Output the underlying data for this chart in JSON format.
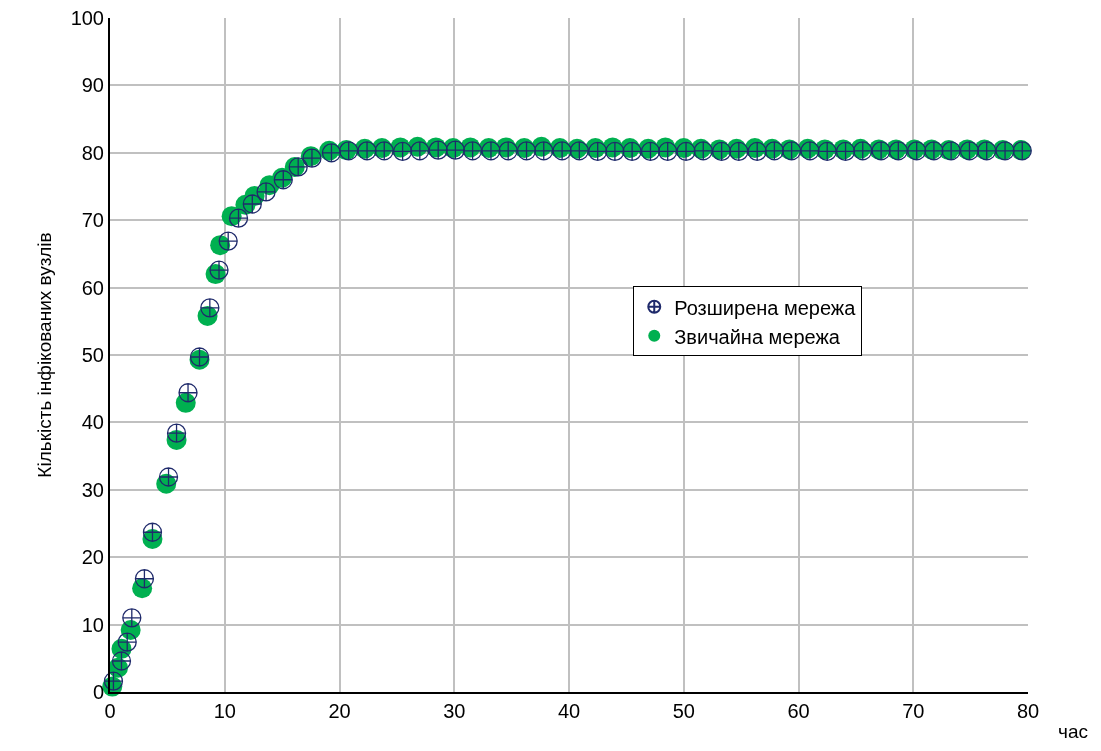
{
  "chart_data": {
    "type": "scatter",
    "xlabel": "час",
    "ylabel": "Кількість інфікованих вузлів",
    "xlim": [
      0,
      80
    ],
    "ylim": [
      0,
      100
    ],
    "xticks": [
      0,
      10,
      20,
      30,
      40,
      50,
      60,
      70,
      80
    ],
    "yticks": [
      0,
      10,
      20,
      30,
      40,
      50,
      60,
      70,
      80,
      90,
      100
    ],
    "grid": true,
    "legend": "right",
    "series": [
      {
        "name": "Звичайна мережа",
        "color": "#00b050",
        "marker": "circle",
        "x": [
          0.2,
          0.7,
          1.0,
          1.8,
          2.8,
          3.7,
          4.9,
          5.8,
          6.6,
          7.8,
          8.5,
          9.2,
          9.6,
          10.6,
          11.8,
          12.6,
          13.9,
          15.0,
          16.1,
          17.5,
          19.1,
          20.6,
          22.2,
          23.7,
          25.3,
          26.8,
          28.4,
          29.9,
          31.4,
          33.0,
          34.5,
          36.1,
          37.6,
          39.2,
          40.7,
          42.3,
          43.8,
          45.3,
          46.9,
          48.4,
          50.0,
          51.5,
          53.1,
          54.6,
          56.2,
          57.7,
          59.2,
          60.8,
          62.3,
          63.9,
          65.4,
          67.0,
          68.5,
          70.1,
          71.6,
          73.1,
          74.7,
          76.2,
          77.8,
          79.4
        ],
        "values": [
          0.8,
          3.6,
          6.4,
          9.2,
          15.4,
          22.7,
          30.9,
          37.4,
          42.9,
          49.3,
          55.8,
          62,
          66.3,
          70.6,
          72.3,
          73.6,
          75.2,
          76.3,
          77.9,
          79.5,
          80.3,
          80.4,
          80.6,
          80.7,
          80.8,
          80.9,
          80.8,
          80.7,
          80.8,
          80.7,
          80.8,
          80.7,
          80.9,
          80.7,
          80.6,
          80.7,
          80.8,
          80.7,
          80.6,
          80.8,
          80.7,
          80.6,
          80.5,
          80.6,
          80.7,
          80.6,
          80.5,
          80.6,
          80.5,
          80.5,
          80.6,
          80.5,
          80.5,
          80.5,
          80.5,
          80.4,
          80.5,
          80.5,
          80.4,
          80.4
        ]
      },
      {
        "name": "Розширена мережа",
        "color": "#1f2a6b",
        "marker": "cross",
        "x": [
          0.3,
          1.0,
          1.5,
          1.9,
          3.0,
          3.7,
          5.1,
          5.8,
          6.8,
          7.8,
          8.7,
          9.5,
          10.3,
          11.2,
          12.4,
          13.6,
          15.1,
          16.4,
          17.6,
          19.3,
          20.8,
          22.4,
          23.9,
          25.5,
          27.0,
          28.6,
          30.1,
          31.6,
          33.2,
          34.7,
          36.3,
          37.8,
          39.4,
          40.9,
          42.5,
          44.0,
          45.5,
          47.1,
          48.6,
          50.2,
          51.7,
          53.3,
          54.8,
          56.4,
          57.9,
          59.4,
          61.0,
          62.5,
          64.1,
          65.6,
          67.2,
          68.7,
          70.3,
          71.8,
          73.3,
          74.9,
          76.4,
          78.0,
          79.5
        ],
        "values": [
          1.6,
          4.6,
          7.4,
          11,
          16.8,
          23.7,
          31.9,
          38.4,
          44.4,
          49.7,
          57,
          62.6,
          66.9,
          70.3,
          72.4,
          74.2,
          76,
          77.9,
          79.2,
          80,
          80.3,
          80.3,
          80.3,
          80.2,
          80.3,
          80.4,
          80.4,
          80.3,
          80.3,
          80.3,
          80.3,
          80.3,
          80.3,
          80.3,
          80.2,
          80.2,
          80.2,
          80.2,
          80.2,
          80.2,
          80.3,
          80.2,
          80.2,
          80.2,
          80.3,
          80.3,
          80.3,
          80.2,
          80.2,
          80.3,
          80.3,
          80.3,
          80.3,
          80.3,
          80.3,
          80.3,
          80.3,
          80.3,
          80.3
        ]
      }
    ]
  }
}
